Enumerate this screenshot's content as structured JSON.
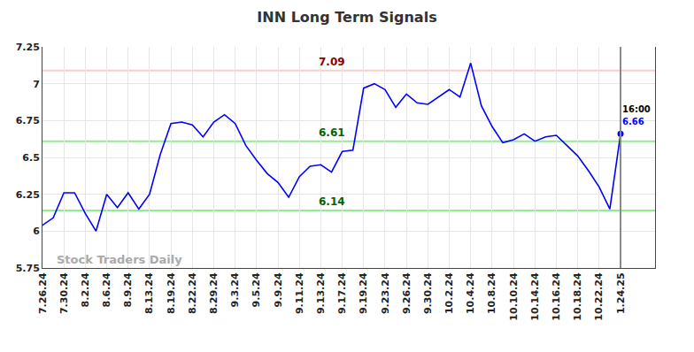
{
  "chart_data": {
    "type": "line",
    "title": "INN Long Term Signals",
    "color": "#0000ff",
    "grid": true,
    "categories": [
      "7.26.24",
      null,
      "7.30.24",
      null,
      "8.2.24",
      null,
      "8.6.24",
      null,
      "8.9.24",
      null,
      "8.13.24",
      null,
      "8.19.24",
      null,
      "8.22.24",
      null,
      "8.29.24",
      null,
      "9.3.24",
      null,
      "9.5.24",
      null,
      "9.9.24",
      null,
      "9.11.24",
      null,
      "9.13.24",
      null,
      "9.17.24",
      null,
      "9.19.24",
      null,
      "9.23.24",
      null,
      "9.26.24",
      null,
      "9.30.24",
      null,
      "10.2.24",
      null,
      "10.4.24",
      null,
      "10.8.24",
      null,
      "10.10.24",
      null,
      "10.14.24",
      null,
      "10.16.24",
      null,
      "10.18.24",
      null,
      "10.22.24",
      null,
      "1.24.25"
    ],
    "values": [
      6.04,
      6.09,
      6.26,
      6.26,
      6.12,
      6.0,
      6.25,
      6.16,
      6.26,
      6.15,
      6.25,
      6.52,
      6.73,
      6.74,
      6.72,
      6.64,
      6.74,
      6.79,
      6.73,
      6.58,
      6.48,
      6.39,
      6.33,
      6.23,
      6.37,
      6.44,
      6.45,
      6.4,
      6.54,
      6.55,
      6.97,
      7.0,
      6.96,
      6.84,
      6.93,
      6.87,
      6.86,
      6.91,
      6.96,
      6.91,
      7.14,
      6.85,
      6.71,
      6.6,
      6.62,
      6.66,
      6.61,
      6.64,
      6.65,
      6.58,
      6.51,
      6.41,
      6.3,
      6.15,
      6.66
    ],
    "ylim": [
      5.75,
      7.25
    ],
    "yticks": [
      5.75,
      6,
      6.25,
      6.5,
      6.75,
      7,
      7.25
    ],
    "hlines": [
      {
        "value": 7.09,
        "label": "7.09",
        "color": "#ffcccc",
        "label_color": "#8b0000"
      },
      {
        "value": 6.61,
        "label": "6.61",
        "color": "#90ee90",
        "label_color": "#006400"
      },
      {
        "value": 6.14,
        "label": "6.14",
        "color": "#90ee90",
        "label_color": "#006400"
      }
    ],
    "end_label": {
      "time": "16:00",
      "value_label": "6.66",
      "color": "#0000ff"
    },
    "watermark": "Stock Traders Daily"
  }
}
